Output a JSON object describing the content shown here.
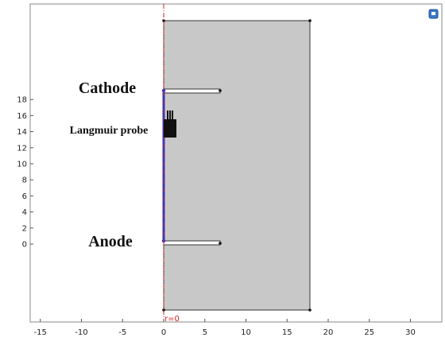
{
  "axis": {
    "x_ticks": [
      "-15",
      "-10",
      "-5",
      "0",
      "5",
      "10",
      "15",
      "20",
      "25",
      "30"
    ],
    "y_ticks": [
      "18",
      "16",
      "14",
      "12",
      "10",
      "8",
      "6",
      "4",
      "2",
      "0"
    ]
  },
  "labels": {
    "cathode": "Cathode",
    "probe": "Langmuir probe",
    "anode": "Anode",
    "axis_marker": "r=0"
  },
  "colors": {
    "domain_fill": "#c8c8c8",
    "axis_line": "#d02020",
    "boundary_line": "#3333cc",
    "view_icon": "#3a78c8"
  },
  "icons": {
    "view": "view-icon"
  }
}
